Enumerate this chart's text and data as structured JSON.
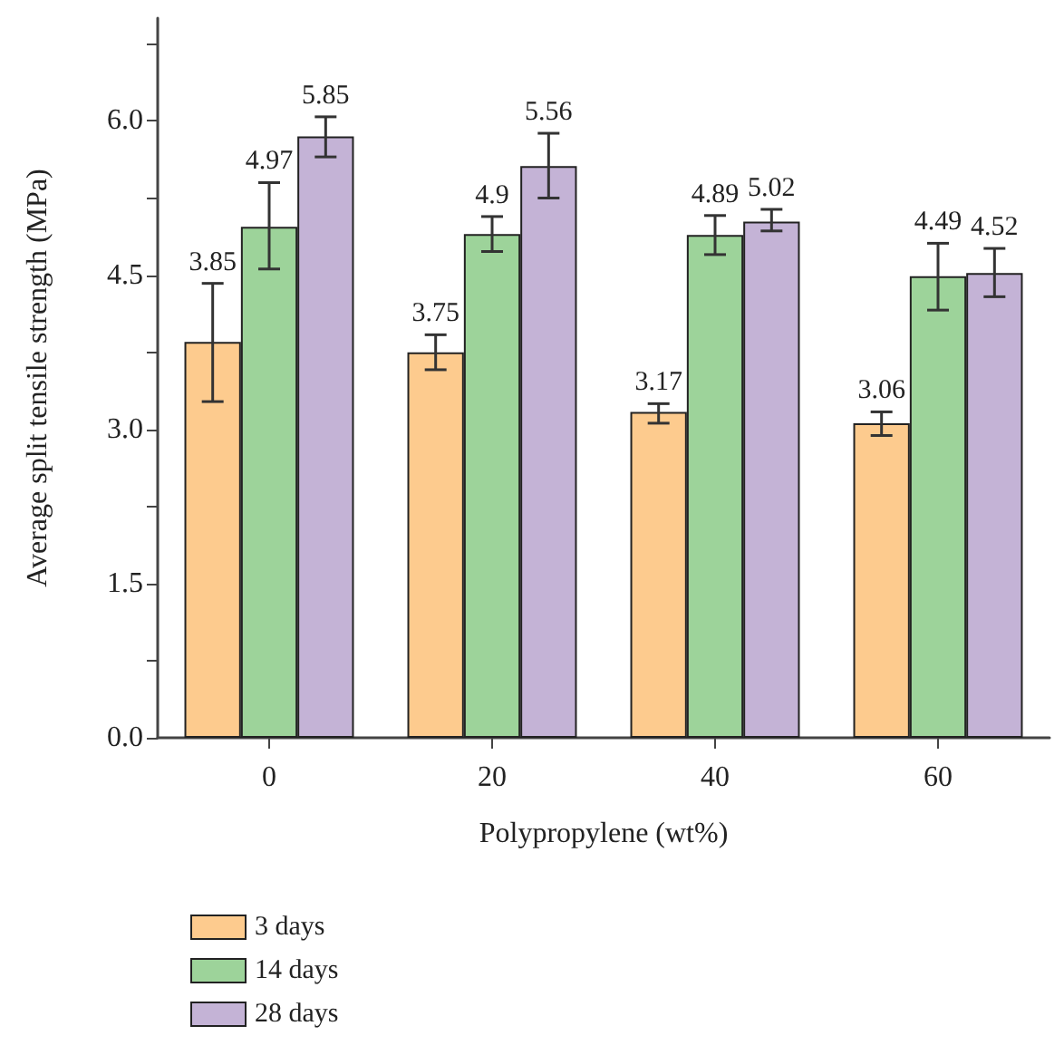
{
  "chart_data": {
    "type": "bar",
    "xlabel": "Polypropylene (wt%)",
    "ylabel": "Average split tensile strength (MPa)",
    "categories": [
      "0",
      "20",
      "40",
      "60"
    ],
    "series": [
      {
        "name": "3 days",
        "color": "#fdcb8e",
        "values": [
          3.85,
          3.75,
          3.17,
          3.06
        ],
        "errors": [
          [
            3.27,
            4.42
          ],
          [
            3.58,
            3.92
          ],
          [
            3.06,
            3.25
          ],
          [
            2.94,
            3.17
          ]
        ]
      },
      {
        "name": "14 days",
        "color": "#9dd39a",
        "values": [
          4.97,
          4.9,
          4.89,
          4.49
        ],
        "errors": [
          [
            4.56,
            5.4
          ],
          [
            4.73,
            5.07
          ],
          [
            4.7,
            5.08
          ],
          [
            4.16,
            4.81
          ]
        ]
      },
      {
        "name": "28 days",
        "color": "#c4b3d6",
        "values": [
          5.85,
          5.56,
          5.02,
          4.52
        ],
        "errors": [
          [
            5.65,
            6.04
          ],
          [
            5.25,
            5.88
          ],
          [
            4.93,
            5.14
          ],
          [
            4.29,
            4.76
          ]
        ]
      }
    ],
    "ylim": [
      0,
      7
    ],
    "yticks": [
      {
        "value": 0,
        "label": "0.0"
      },
      {
        "value": 0.75,
        "label": null
      },
      1.5,
      {
        "value": 2.25,
        "label": null
      },
      {
        "value": 3,
        "label": "3.0"
      },
      {
        "value": 3.75,
        "label": null
      },
      4.5,
      {
        "value": 5.25,
        "label": null
      },
      {
        "value": 6,
        "label": "6.0"
      },
      {
        "value": 6.75,
        "label": null
      }
    ],
    "data_labels": true,
    "legend": "bottom left",
    "grid": false
  }
}
